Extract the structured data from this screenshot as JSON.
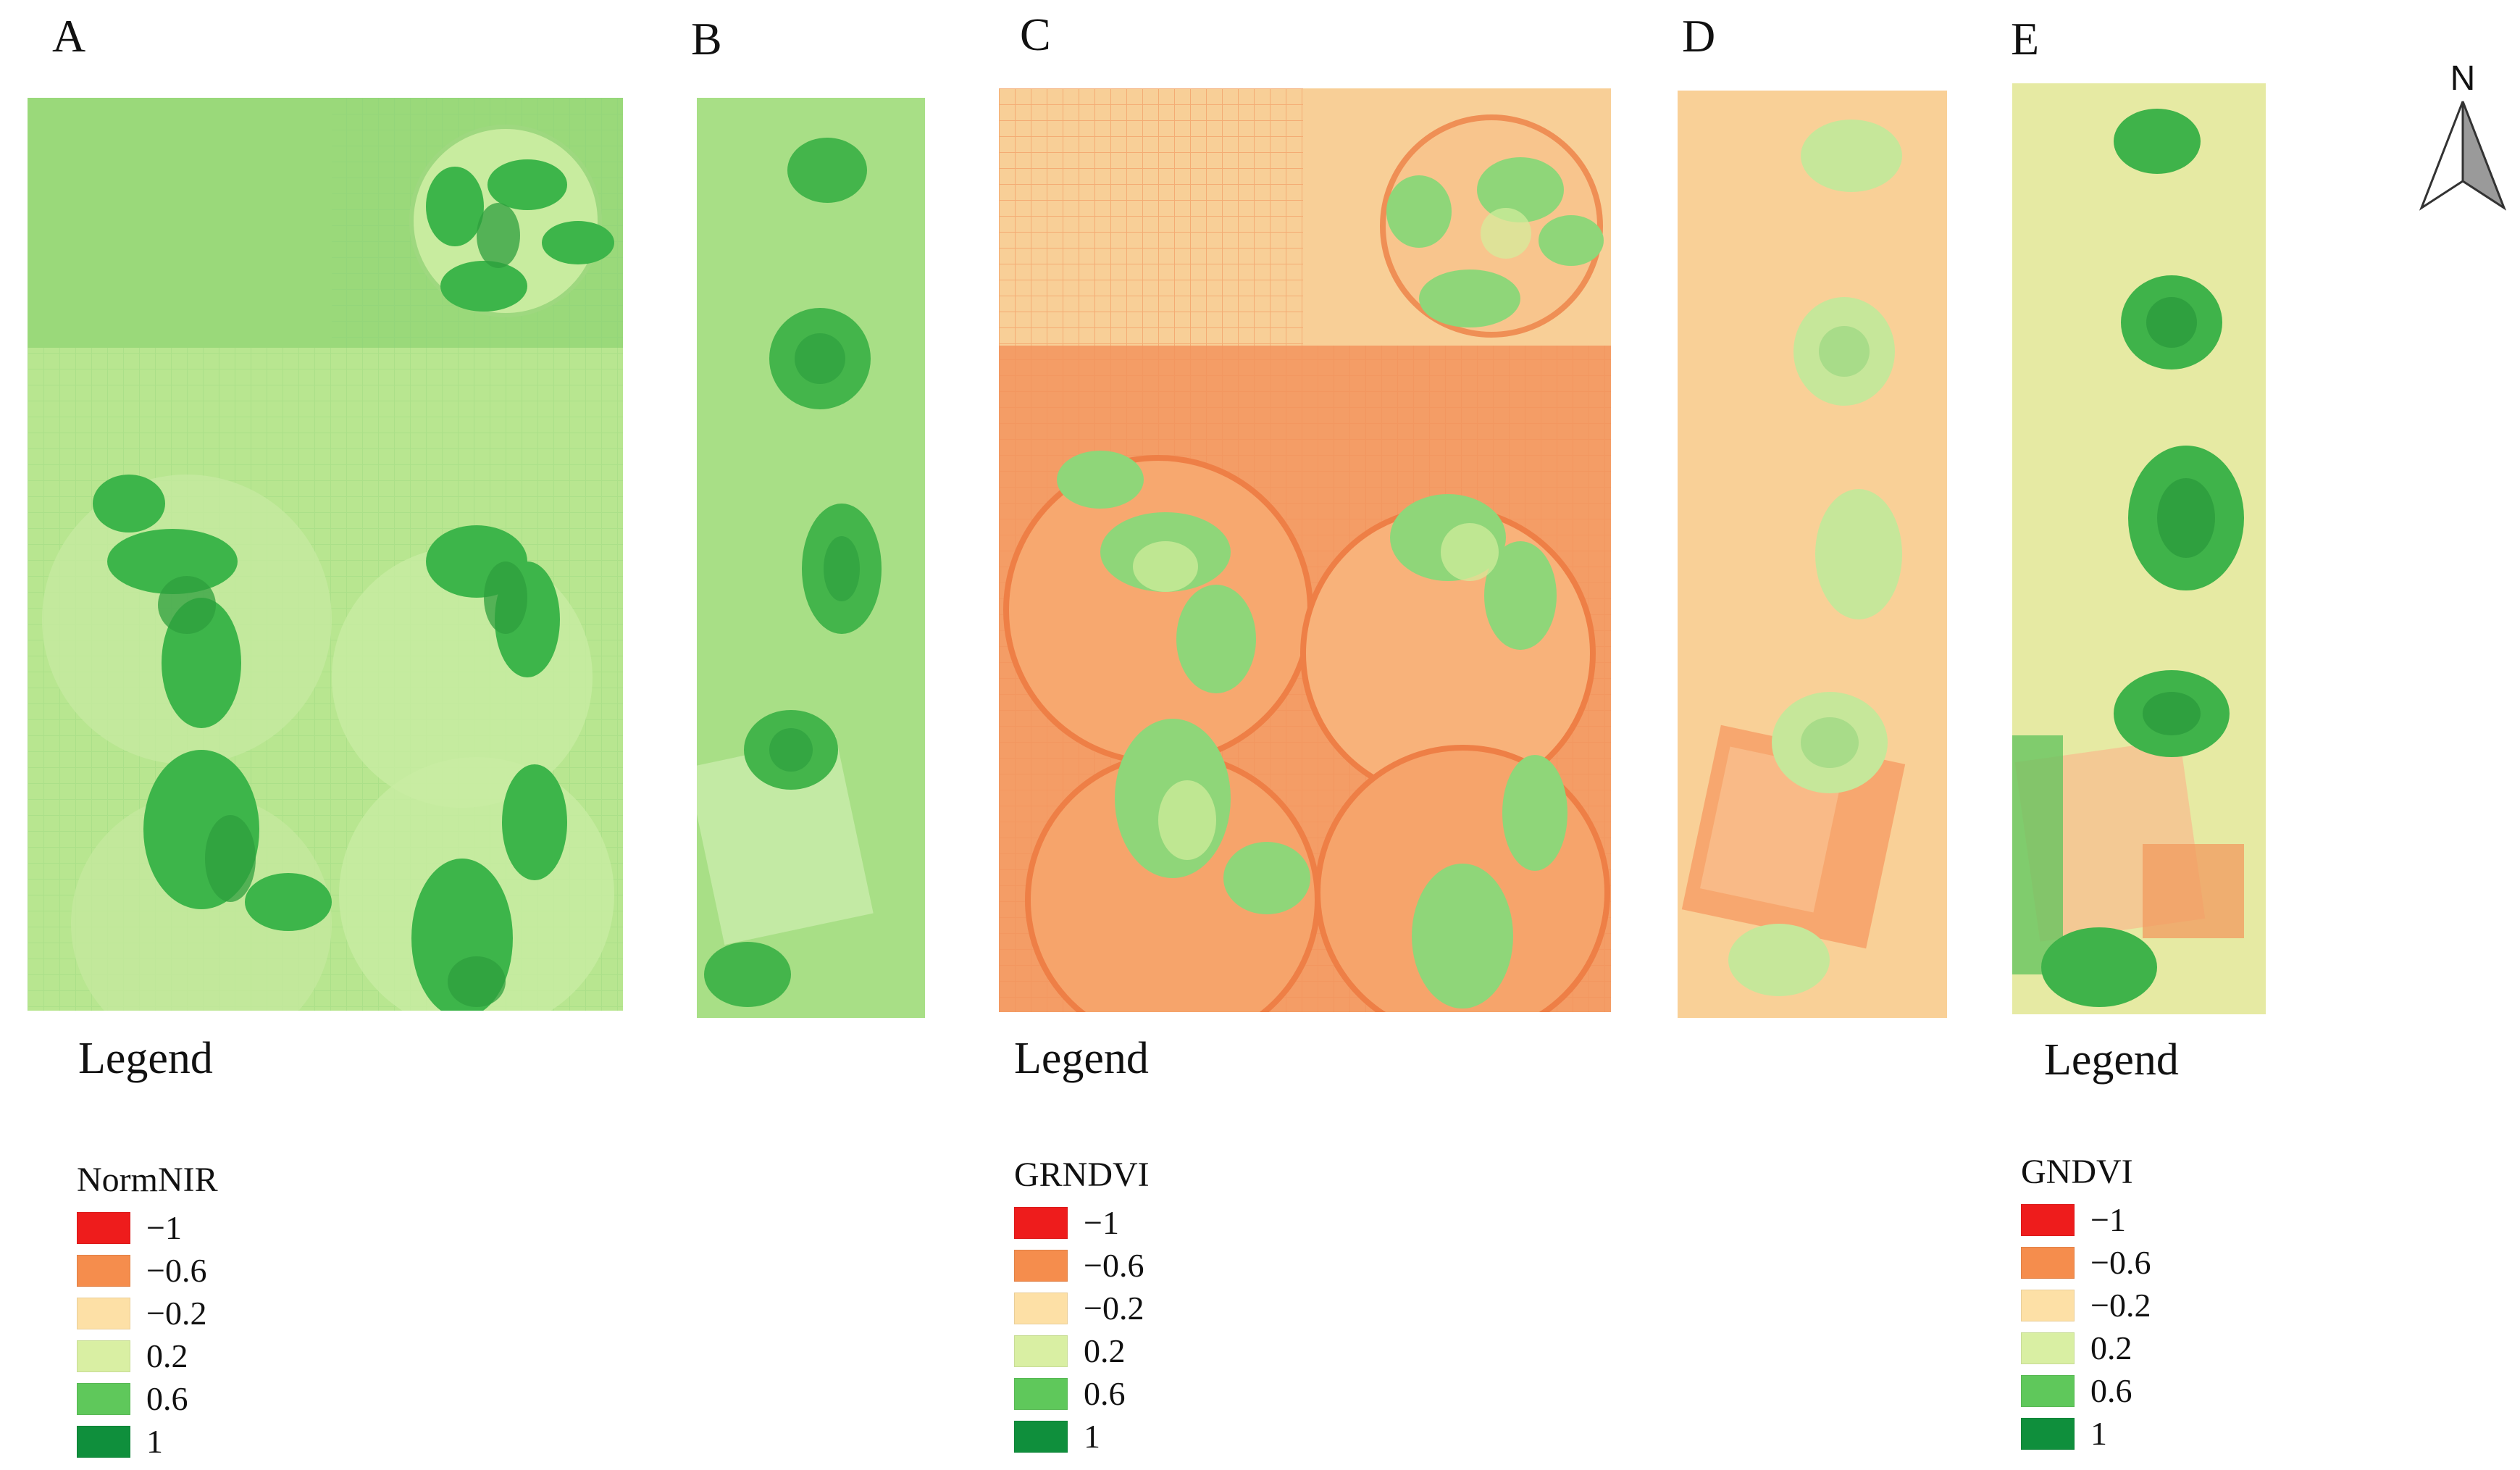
{
  "panels": [
    {
      "letter": "A"
    },
    {
      "letter": "B"
    },
    {
      "letter": "C"
    },
    {
      "letter": "D"
    },
    {
      "letter": "E"
    }
  ],
  "legends": [
    {
      "title": "Legend",
      "index_name": "NormNIR",
      "items": [
        {
          "label": "−1",
          "color": "#ee1c1c"
        },
        {
          "label": "−0.6",
          "color": "#f58d4d"
        },
        {
          "label": "−0.2",
          "color": "#fde0a6"
        },
        {
          "label": "0.2",
          "color": "#d9efa3"
        },
        {
          "label": "0.6",
          "color": "#5fc85b"
        },
        {
          "label": "1",
          "color": "#0f8f3c"
        }
      ]
    },
    {
      "title": "Legend",
      "index_name": "GRNDVI",
      "items": [
        {
          "label": "−1",
          "color": "#ee1c1c"
        },
        {
          "label": "−0.6",
          "color": "#f58d4d"
        },
        {
          "label": "−0.2",
          "color": "#fde0a6"
        },
        {
          "label": "0.2",
          "color": "#d9efa3"
        },
        {
          "label": "0.6",
          "color": "#5fc85b"
        },
        {
          "label": "1",
          "color": "#0f8f3c"
        }
      ]
    },
    {
      "title": "Legend",
      "index_name": "GNDVI",
      "items": [
        {
          "label": "−1",
          "color": "#ee1c1c"
        },
        {
          "label": "−0.6",
          "color": "#f58d4d"
        },
        {
          "label": "−0.2",
          "color": "#fde0a6"
        },
        {
          "label": "0.2",
          "color": "#d9efa3"
        },
        {
          "label": "0.6",
          "color": "#5fc85b"
        },
        {
          "label": "1",
          "color": "#0f8f3c"
        }
      ]
    }
  ],
  "north_arrow": {
    "label": "N"
  }
}
